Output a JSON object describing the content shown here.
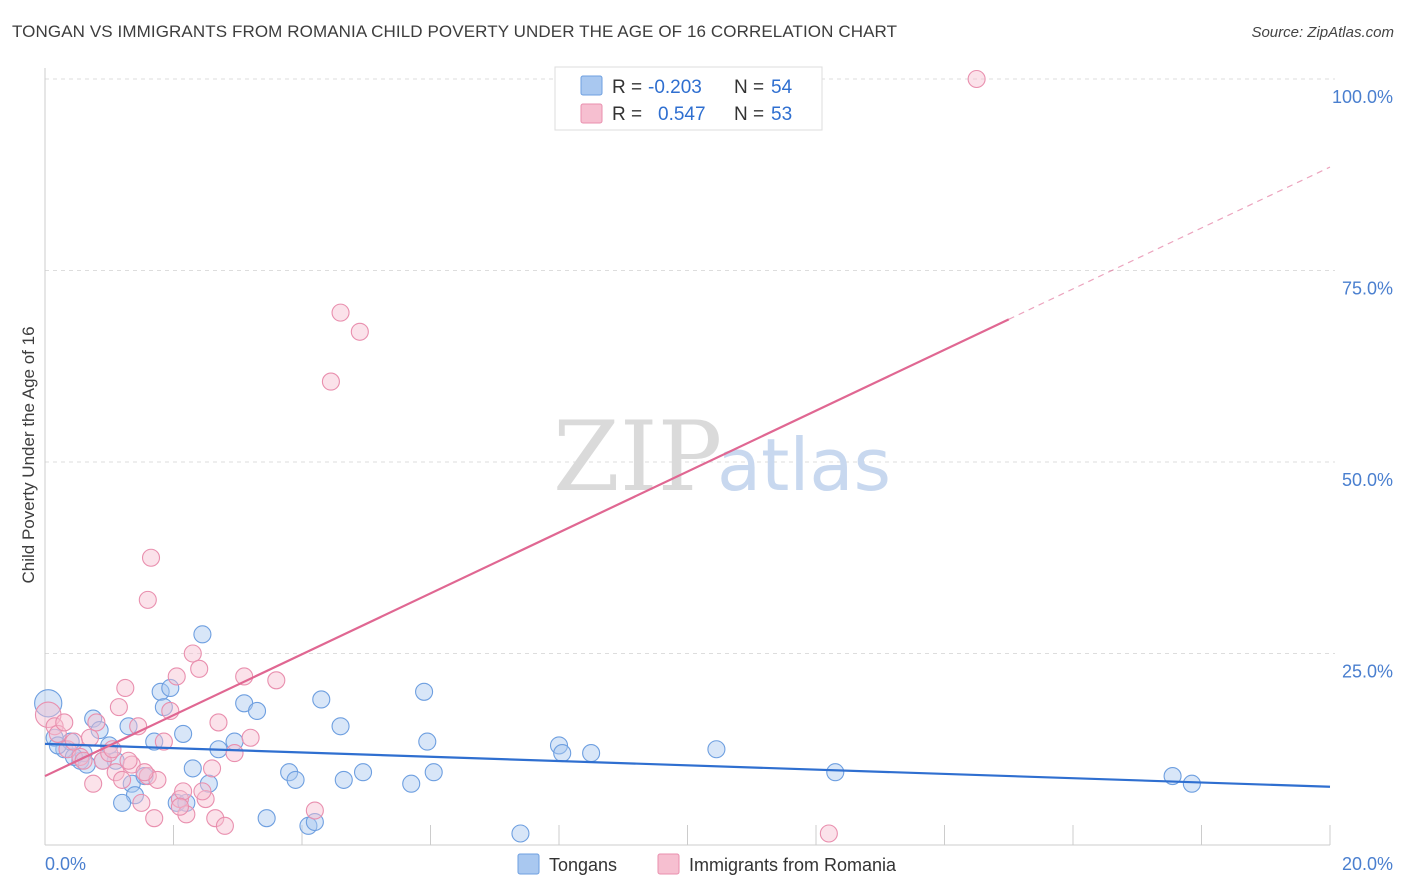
{
  "title": "TONGAN VS IMMIGRANTS FROM ROMANIA CHILD POVERTY UNDER THE AGE OF 16 CORRELATION CHART",
  "source": "Source: ZipAtlas.com",
  "watermark": {
    "part1": "ZIP",
    "part2": "atlas"
  },
  "colors": {
    "blue_fill": "#a9c8f0",
    "blue_stroke": "#6e9fe0",
    "blue_line": "#2f6fd0",
    "pink_fill": "#f6bfd0",
    "pink_stroke": "#e98fae",
    "pink_line": "#e06792",
    "axis_tick_text": "#4a7fcf",
    "grid": "#dddddd"
  },
  "legend": {
    "rows": [
      {
        "r_label": "R =",
        "r_value": "-0.203",
        "n_label": "N =",
        "n_value": "54",
        "series": "blue"
      },
      {
        "r_label": "R =",
        "r_value": "0.547",
        "n_label": "N =",
        "n_value": "53",
        "series": "pink"
      }
    ]
  },
  "bottom_legend": [
    "Tongans",
    "Immigrants from Romania"
  ],
  "chart_data": {
    "type": "scatter",
    "title": "TONGAN VS IMMIGRANTS FROM ROMANIA CHILD POVERTY UNDER THE AGE OF 16 CORRELATION CHART",
    "xlabel": "",
    "ylabel": "Child Poverty Under the Age of 16",
    "xlim": [
      0,
      20
    ],
    "ylim": [
      0,
      100
    ],
    "x_tick_labels": [
      "0.0%",
      "20.0%"
    ],
    "y_ticks": [
      25,
      50,
      75,
      100
    ],
    "y_tick_labels": [
      "25.0%",
      "50.0%",
      "75.0%",
      "100.0%"
    ],
    "grid": true,
    "legend_position": "top-center",
    "series": [
      {
        "name": "Tongans",
        "color": "blue",
        "trend": {
          "x": [
            0,
            20
          ],
          "y": [
            13.2,
            7.6
          ],
          "dashed_from": null
        },
        "points": [
          [
            0.05,
            18.5,
            1.6
          ],
          [
            0.15,
            14.0,
            1
          ],
          [
            0.3,
            12.5,
            1
          ],
          [
            0.4,
            13.5,
            1
          ],
          [
            0.55,
            11.0,
            1
          ],
          [
            0.6,
            12.0,
            1
          ],
          [
            0.75,
            16.5,
            1
          ],
          [
            0.85,
            15.0,
            1
          ],
          [
            1.0,
            13.0,
            1
          ],
          [
            1.1,
            11.0,
            1
          ],
          [
            1.3,
            15.5,
            1
          ],
          [
            1.35,
            8.0,
            1
          ],
          [
            1.4,
            6.5,
            1
          ],
          [
            1.55,
            9.0,
            1
          ],
          [
            1.7,
            13.5,
            1
          ],
          [
            1.8,
            20.0,
            1
          ],
          [
            1.85,
            18.0,
            1
          ],
          [
            1.95,
            20.5,
            1
          ],
          [
            2.05,
            5.5,
            1
          ],
          [
            2.15,
            14.5,
            1
          ],
          [
            2.3,
            10.0,
            1
          ],
          [
            2.45,
            27.5,
            1
          ],
          [
            2.55,
            8.0,
            1
          ],
          [
            2.7,
            12.5,
            1
          ],
          [
            2.95,
            13.5,
            1
          ],
          [
            3.1,
            18.5,
            1
          ],
          [
            3.3,
            17.5,
            1
          ],
          [
            3.45,
            3.5,
            1
          ],
          [
            3.8,
            9.5,
            1
          ],
          [
            3.9,
            8.5,
            1
          ],
          [
            4.1,
            2.5,
            1
          ],
          [
            4.3,
            19.0,
            1
          ],
          [
            4.6,
            15.5,
            1
          ],
          [
            4.65,
            8.5,
            1
          ],
          [
            4.95,
            9.5,
            1
          ],
          [
            5.7,
            8.0,
            1
          ],
          [
            5.9,
            20.0,
            1
          ],
          [
            5.95,
            13.5,
            1
          ],
          [
            6.05,
            9.5,
            1
          ],
          [
            7.4,
            1.5,
            1
          ],
          [
            8.0,
            13.0,
            1
          ],
          [
            8.05,
            12.0,
            1
          ],
          [
            8.5,
            12.0,
            1
          ],
          [
            10.45,
            12.5,
            1
          ],
          [
            12.3,
            9.5,
            1
          ],
          [
            17.55,
            9.0,
            1
          ],
          [
            17.85,
            8.0,
            1
          ],
          [
            0.9,
            11.0,
            1
          ],
          [
            4.2,
            3.0,
            1
          ],
          [
            1.2,
            5.5,
            1
          ],
          [
            0.45,
            11.5,
            1
          ],
          [
            0.2,
            13.0,
            1
          ],
          [
            0.65,
            10.5,
            1
          ],
          [
            2.2,
            5.5,
            1
          ]
        ]
      },
      {
        "name": "Immigrants from Romania",
        "color": "pink",
        "trend": {
          "x": [
            0,
            20
          ],
          "y": [
            9.0,
            88.5
          ],
          "dashed_from": 15.0
        },
        "points": [
          [
            0.05,
            17.0,
            1.5
          ],
          [
            0.15,
            15.5,
            1
          ],
          [
            0.2,
            14.5,
            1
          ],
          [
            0.35,
            12.5,
            1
          ],
          [
            0.45,
            13.5,
            1
          ],
          [
            0.55,
            11.5,
            1
          ],
          [
            0.7,
            14.0,
            1
          ],
          [
            0.8,
            16.0,
            1
          ],
          [
            0.9,
            11.0,
            1
          ],
          [
            1.0,
            12.0,
            1
          ],
          [
            1.1,
            9.5,
            1
          ],
          [
            1.15,
            18.0,
            1
          ],
          [
            1.2,
            8.5,
            1
          ],
          [
            1.25,
            20.5,
            1
          ],
          [
            1.35,
            10.5,
            1
          ],
          [
            1.45,
            15.5,
            1
          ],
          [
            1.5,
            5.5,
            1
          ],
          [
            1.6,
            9.0,
            1
          ],
          [
            1.6,
            32.0,
            1
          ],
          [
            1.65,
            37.5,
            1
          ],
          [
            1.7,
            3.5,
            1
          ],
          [
            1.75,
            8.5,
            1
          ],
          [
            1.85,
            13.5,
            1
          ],
          [
            1.95,
            17.5,
            1
          ],
          [
            2.05,
            22.0,
            1
          ],
          [
            2.1,
            6.0,
            1
          ],
          [
            2.15,
            7.0,
            1
          ],
          [
            2.2,
            4.0,
            1
          ],
          [
            2.3,
            25.0,
            1
          ],
          [
            2.4,
            23.0,
            1
          ],
          [
            2.5,
            6.0,
            1
          ],
          [
            2.6,
            10.0,
            1
          ],
          [
            2.65,
            3.5,
            1
          ],
          [
            2.7,
            16.0,
            1
          ],
          [
            2.8,
            2.5,
            1
          ],
          [
            2.95,
            12.0,
            1
          ],
          [
            3.1,
            22.0,
            1
          ],
          [
            3.2,
            14.0,
            1
          ],
          [
            3.6,
            21.5,
            1
          ],
          [
            4.2,
            4.5,
            1
          ],
          [
            4.45,
            60.5,
            1
          ],
          [
            4.6,
            69.5,
            1
          ],
          [
            4.9,
            67.0,
            1
          ],
          [
            12.2,
            1.5,
            1
          ],
          [
            14.5,
            100.0,
            1
          ],
          [
            0.3,
            16.0,
            1
          ],
          [
            0.6,
            11.0,
            1
          ],
          [
            1.05,
            12.5,
            1
          ],
          [
            1.3,
            11.0,
            1
          ],
          [
            1.55,
            9.5,
            1
          ],
          [
            2.1,
            5.0,
            1
          ],
          [
            0.75,
            8.0,
            1
          ],
          [
            2.45,
            7.0,
            1
          ]
        ]
      }
    ]
  }
}
